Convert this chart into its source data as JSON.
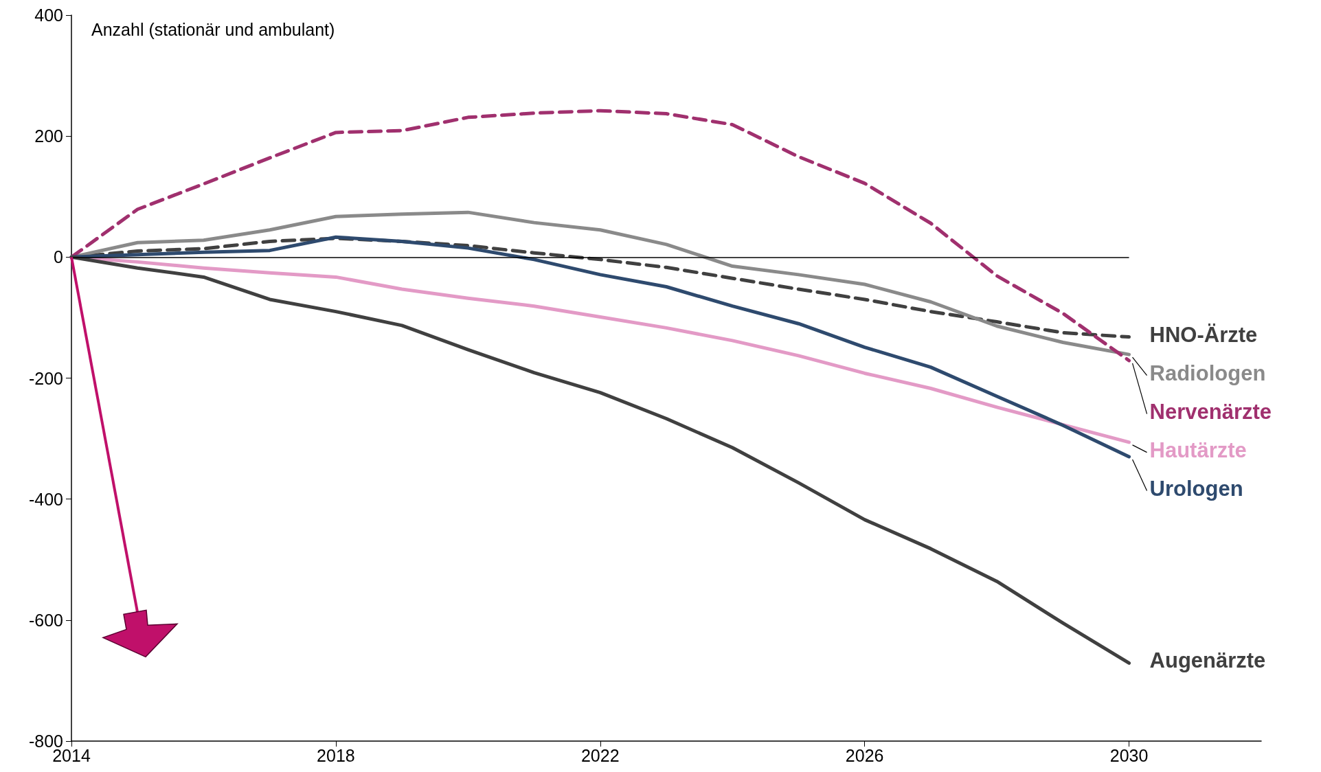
{
  "chart_data": {
    "type": "line",
    "ylabel": "Anzahl (stationär und ambulant)",
    "x": [
      2014,
      2015,
      2016,
      2017,
      2018,
      2019,
      2020,
      2021,
      2022,
      2023,
      2024,
      2025,
      2026,
      2027,
      2028,
      2029,
      2030
    ],
    "xlim": [
      2014,
      2032
    ],
    "xticks": [
      2014,
      2018,
      2022,
      2026,
      2030
    ],
    "ylim": [
      -800,
      400
    ],
    "yticks": [
      -800,
      -600,
      -400,
      -200,
      0,
      200,
      400
    ],
    "grid": false,
    "legend": false,
    "marker": "none",
    "ref_lines": [
      {
        "axis": "y",
        "value": 0,
        "color": "#000000"
      }
    ],
    "series": [
      {
        "name": "HNO-Ärzte",
        "color": "#404040",
        "line_style": "dashed",
        "values": [
          0,
          10,
          14,
          26,
          31,
          26,
          19,
          7,
          -4,
          -17,
          -35,
          -53,
          -70,
          -90,
          -107,
          -125,
          -132
        ]
      },
      {
        "name": "Radiologen",
        "color": "#8a8a8a",
        "line_style": "solid",
        "values": [
          0,
          24,
          28,
          45,
          67,
          71,
          74,
          57,
          45,
          21,
          -15,
          -29,
          -45,
          -74,
          -114,
          -141,
          -161
        ]
      },
      {
        "name": "Nervenärzte",
        "color": "#a0306e",
        "line_style": "dashed",
        "values": [
          0,
          79,
          121,
          164,
          206,
          209,
          231,
          238,
          242,
          237,
          219,
          166,
          122,
          56,
          -31,
          -93,
          -171
        ]
      },
      {
        "name": "Hautärzte",
        "color": "#e39ac6",
        "line_style": "solid",
        "values": [
          0,
          -8,
          -18,
          -26,
          -33,
          -53,
          -68,
          -81,
          -99,
          -117,
          -138,
          -163,
          -192,
          -217,
          -248,
          -277,
          -306
        ]
      },
      {
        "name": "Urologen",
        "color": "#2e4a6e",
        "line_style": "solid",
        "values": [
          0,
          4,
          8,
          11,
          33,
          26,
          15,
          -4,
          -29,
          -49,
          -81,
          -110,
          -149,
          -182,
          -230,
          -278,
          -330
        ]
      },
      {
        "name": "Augenärzte",
        "color": "#404040",
        "line_style": "solid",
        "values": [
          0,
          -18,
          -33,
          -70,
          -90,
          -113,
          -153,
          -191,
          -224,
          -267,
          -315,
          -373,
          -434,
          -482,
          -536,
          -605,
          -671
        ]
      }
    ]
  }
}
